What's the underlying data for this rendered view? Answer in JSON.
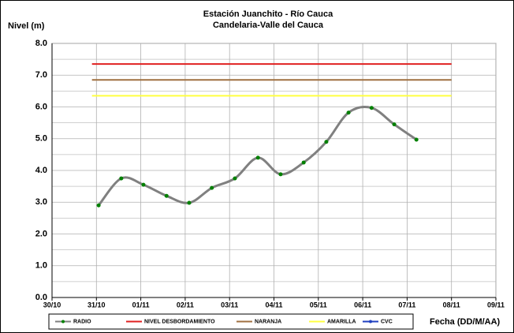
{
  "chart_data": {
    "type": "line",
    "title": "Estación Juanchito - Río Cauca",
    "subtitle": "Candelaria-Valle del Cauca",
    "y_label": "Nivel (m)",
    "x_label": "Fecha (DD/M/AA)",
    "xlim": [
      0,
      10
    ],
    "xticks": [
      {
        "value": 0,
        "label": "30/10"
      },
      {
        "value": 1,
        "label": "31/10"
      },
      {
        "value": 2,
        "label": "01/11"
      },
      {
        "value": 3,
        "label": "02/11"
      },
      {
        "value": 4,
        "label": "03/11"
      },
      {
        "value": 5,
        "label": "04/11"
      },
      {
        "value": 6,
        "label": "05/11"
      },
      {
        "value": 7,
        "label": "06/11"
      },
      {
        "value": 8,
        "label": "07/11"
      },
      {
        "value": 9,
        "label": "08/11"
      },
      {
        "value": 10,
        "label": "09/11"
      }
    ],
    "ylim": [
      0,
      8
    ],
    "yticks": [
      {
        "value": 0,
        "label": "0.0"
      },
      {
        "value": 1,
        "label": "1.0"
      },
      {
        "value": 2,
        "label": "2.0"
      },
      {
        "value": 3,
        "label": "3.0"
      },
      {
        "value": 4,
        "label": "4.0"
      },
      {
        "value": 5,
        "label": "5.0"
      },
      {
        "value": 6,
        "label": "6.0"
      },
      {
        "value": 7,
        "label": "7.0"
      },
      {
        "value": 8,
        "label": "8.0"
      }
    ],
    "minor_yticks": [
      0.5,
      1.5,
      2.5,
      3.5,
      4.5,
      5.5,
      6.5,
      7.5
    ],
    "grid": true,
    "legend": "bottom",
    "series": [
      {
        "name": "RADIO",
        "color": "#808080",
        "marker_color": "#008000",
        "smooth": true,
        "x": [
          1.05,
          1.56,
          2.06,
          2.58,
          3.09,
          3.6,
          4.12,
          4.64,
          5.15,
          5.67,
          6.18,
          6.68,
          7.2,
          7.71,
          8.21
        ],
        "values": [
          2.9,
          3.75,
          3.55,
          3.2,
          2.98,
          3.45,
          3.75,
          4.4,
          3.88,
          4.25,
          4.9,
          5.82,
          5.97,
          5.45,
          4.97
        ]
      },
      {
        "name": "NIVEL DESBORDAMIENTO",
        "color": "#e02020",
        "x": [
          0.9,
          9
        ],
        "values": [
          7.35,
          7.35
        ]
      },
      {
        "name": "NARANJA",
        "color": "#a07040",
        "x": [
          0.9,
          9
        ],
        "values": [
          6.85,
          6.85
        ]
      },
      {
        "name": "AMARILLA",
        "color": "#ffff40",
        "x": [
          0.9,
          9
        ],
        "values": [
          6.35,
          6.35
        ]
      },
      {
        "name": "CVC",
        "color": "#2040c0",
        "marker_color": "#2040c0",
        "x": [],
        "values": []
      }
    ]
  }
}
